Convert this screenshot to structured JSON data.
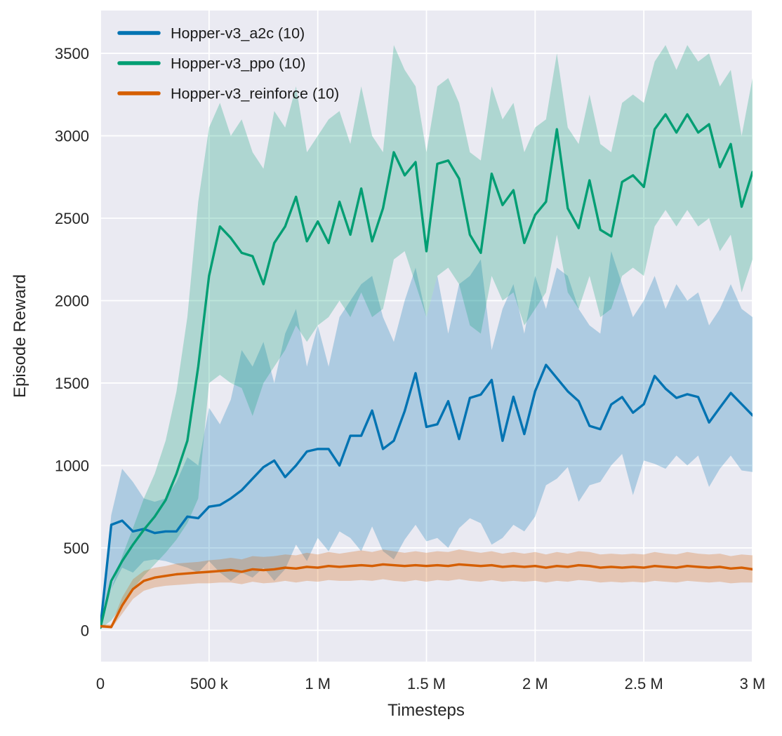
{
  "figure": {
    "background": "#ffffff",
    "axes_background": "#eaeaf2",
    "grid_color": "#ffffff",
    "text_color": "#262626"
  },
  "chart_data": {
    "type": "line",
    "title": "",
    "xlabel": "Timesteps",
    "ylabel": "Episode Reward",
    "xlim": [
      0,
      3000000
    ],
    "ylim": [
      -190,
      3760
    ],
    "grid": true,
    "legend_position": "upper left",
    "band_alpha": 0.26,
    "x_ticks": {
      "values": [
        0,
        500000,
        1000000,
        1500000,
        2000000,
        2500000,
        3000000
      ],
      "labels": [
        "0",
        "500 k",
        "1 M",
        "1.5 M",
        "2 M",
        "2.5 M",
        "3 M"
      ]
    },
    "y_ticks": {
      "values": [
        0,
        500,
        1000,
        1500,
        2000,
        2500,
        3000,
        3500
      ],
      "labels": [
        "0",
        "500",
        "1000",
        "1500",
        "2000",
        "2500",
        "3000",
        "3500"
      ]
    },
    "x_start": 0,
    "x_step": 50000,
    "series": [
      {
        "name": "Hopper-v3_a2c (10)",
        "color": "#0173b2",
        "mean": [
          20,
          640,
          665,
          600,
          615,
          590,
          600,
          600,
          690,
          680,
          750,
          760,
          800,
          850,
          920,
          990,
          1030,
          930,
          1000,
          1085,
          1100,
          1100,
          1000,
          1180,
          1180,
          1333,
          1100,
          1150,
          1330,
          1560,
          1234,
          1250,
          1390,
          1160,
          1410,
          1430,
          1519,
          1150,
          1417,
          1191,
          1450,
          1610,
          1530,
          1450,
          1390,
          1240,
          1220,
          1370,
          1415,
          1320,
          1372,
          1543,
          1466,
          1410,
          1432,
          1415,
          1261,
          1351,
          1440,
          1372,
          1304
        ],
        "lo": [
          10,
          250,
          380,
          350,
          420,
          430,
          420,
          400,
          380,
          350,
          420,
          350,
          300,
          350,
          320,
          380,
          300,
          370,
          520,
          420,
          560,
          480,
          600,
          560,
          480,
          630,
          480,
          430,
          550,
          640,
          540,
          560,
          500,
          620,
          680,
          650,
          520,
          560,
          640,
          600,
          690,
          880,
          920,
          990,
          780,
          880,
          900,
          1000,
          1070,
          820,
          1030,
          1010,
          980,
          1060,
          1000,
          1060,
          870,
          980,
          1060,
          970,
          960
        ],
        "hi": [
          40,
          700,
          980,
          900,
          800,
          780,
          800,
          900,
          1050,
          1000,
          1350,
          1250,
          1400,
          1700,
          1600,
          1750,
          1500,
          1800,
          1950,
          1600,
          1850,
          1600,
          1900,
          2000,
          2100,
          2150,
          1900,
          1750,
          2000,
          2200,
          1900,
          2150,
          1800,
          2100,
          2150,
          2250,
          1700,
          1950,
          2100,
          1800,
          2150,
          1950,
          2200,
          2150,
          1950,
          1850,
          1800,
          2300,
          2100,
          1900,
          2000,
          2150,
          1950,
          2100,
          2000,
          2050,
          1850,
          1950,
          2100,
          1950,
          1900
        ]
      },
      {
        "name": "Hopper-v3_ppo (10)",
        "color": "#029e73",
        "mean": [
          15,
          300,
          420,
          520,
          610,
          690,
          790,
          950,
          1150,
          1600,
          2150,
          2450,
          2380,
          2290,
          2270,
          2100,
          2350,
          2450,
          2630,
          2360,
          2480,
          2350,
          2600,
          2400,
          2680,
          2360,
          2560,
          2900,
          2760,
          2840,
          2300,
          2830,
          2850,
          2740,
          2400,
          2290,
          2770,
          2580,
          2670,
          2350,
          2520,
          2600,
          3040,
          2560,
          2440,
          2730,
          2430,
          2390,
          2720,
          2760,
          2690,
          3040,
          3130,
          3020,
          3130,
          3020,
          3070,
          2810,
          2950,
          2570,
          2780
        ],
        "lo": [
          8,
          60,
          150,
          250,
          330,
          400,
          470,
          550,
          650,
          800,
          1500,
          1550,
          1500,
          1470,
          1300,
          1500,
          1600,
          1700,
          1850,
          1750,
          1850,
          1900,
          2000,
          1900,
          2050,
          1900,
          1950,
          2250,
          2300,
          2100,
          1900,
          2150,
          2200,
          2100,
          1850,
          1800,
          2150,
          2000,
          2050,
          1850,
          1950,
          2050,
          2400,
          2050,
          1950,
          2150,
          1900,
          1950,
          2150,
          2200,
          2150,
          2450,
          2550,
          2450,
          2550,
          2450,
          2500,
          2300,
          2400,
          2050,
          2250
        ],
        "hi": [
          40,
          250,
          450,
          620,
          800,
          950,
          1150,
          1450,
          1900,
          2600,
          3050,
          3200,
          3000,
          3100,
          2900,
          2800,
          3150,
          3050,
          3300,
          2900,
          3000,
          3100,
          3150,
          2950,
          3300,
          3000,
          2900,
          3550,
          3400,
          3300,
          2900,
          3300,
          3350,
          3200,
          2900,
          2850,
          3300,
          3100,
          3200,
          2900,
          3050,
          3100,
          3500,
          3050,
          2950,
          3250,
          2950,
          2900,
          3200,
          3250,
          3200,
          3450,
          3550,
          3400,
          3550,
          3450,
          3500,
          3300,
          3400,
          3000,
          3350
        ]
      },
      {
        "name": "Hopper-v3_reinforce (10)",
        "color": "#d55e00",
        "mean": [
          25,
          20,
          150,
          250,
          300,
          320,
          330,
          340,
          345,
          350,
          355,
          360,
          365,
          355,
          370,
          365,
          370,
          380,
          375,
          385,
          380,
          390,
          385,
          390,
          395,
          390,
          400,
          395,
          390,
          395,
          390,
          395,
          390,
          400,
          395,
          390,
          395,
          385,
          390,
          385,
          390,
          380,
          390,
          385,
          395,
          390,
          380,
          385,
          380,
          385,
          380,
          390,
          385,
          380,
          390,
          385,
          380,
          385,
          375,
          380,
          370
        ],
        "lo": [
          15,
          10,
          100,
          190,
          240,
          260,
          270,
          275,
          280,
          285,
          285,
          290,
          290,
          280,
          295,
          285,
          290,
          300,
          290,
          300,
          295,
          305,
          300,
          300,
          305,
          300,
          310,
          300,
          295,
          305,
          295,
          305,
          300,
          310,
          300,
          295,
          305,
          295,
          300,
          295,
          300,
          290,
          300,
          295,
          305,
          300,
          290,
          295,
          290,
          295,
          290,
          300,
          295,
          290,
          300,
          295,
          290,
          295,
          285,
          290,
          290
        ],
        "hi": [
          35,
          35,
          200,
          310,
          360,
          380,
          390,
          405,
          410,
          415,
          425,
          430,
          440,
          430,
          450,
          445,
          450,
          460,
          455,
          470,
          460,
          475,
          465,
          475,
          485,
          475,
          490,
          480,
          470,
          480,
          470,
          480,
          475,
          490,
          480,
          470,
          480,
          465,
          475,
          465,
          475,
          460,
          475,
          465,
          480,
          475,
          460,
          465,
          460,
          465,
          460,
          475,
          465,
          460,
          475,
          465,
          460,
          465,
          450,
          460,
          455
        ]
      }
    ]
  }
}
